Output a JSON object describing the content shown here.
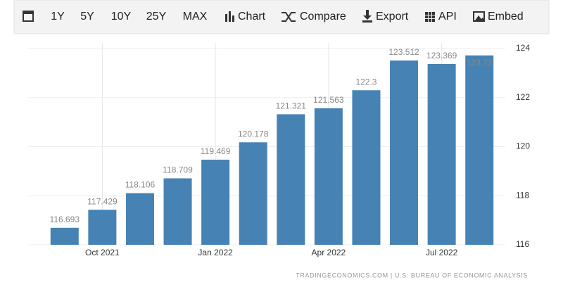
{
  "toolbar": [
    "1Y",
    "5Y",
    "10Y",
    "25Y",
    "MAX",
    "Chart",
    "Compare",
    "Export",
    "API",
    "Embed"
  ],
  "chart_data": {
    "type": "bar",
    "categories": [
      null,
      "Oct 2021",
      null,
      null,
      "Jan 2022",
      null,
      null,
      "Apr 2022",
      null,
      null,
      "Jul 2022",
      null
    ],
    "values": [
      116.693,
      117.429,
      118.106,
      118.709,
      119.469,
      120.178,
      121.321,
      121.563,
      122.3,
      123.512,
      123.369,
      123.72
    ],
    "color": "#4682b4",
    "ylim": [
      116,
      124
    ],
    "yticks": [
      116,
      118,
      120,
      122,
      124
    ],
    "grid": true,
    "source": "TRADINGECONOMICS.COM | U.S. BUREAU OF ECONOMIC ANALYSIS"
  }
}
